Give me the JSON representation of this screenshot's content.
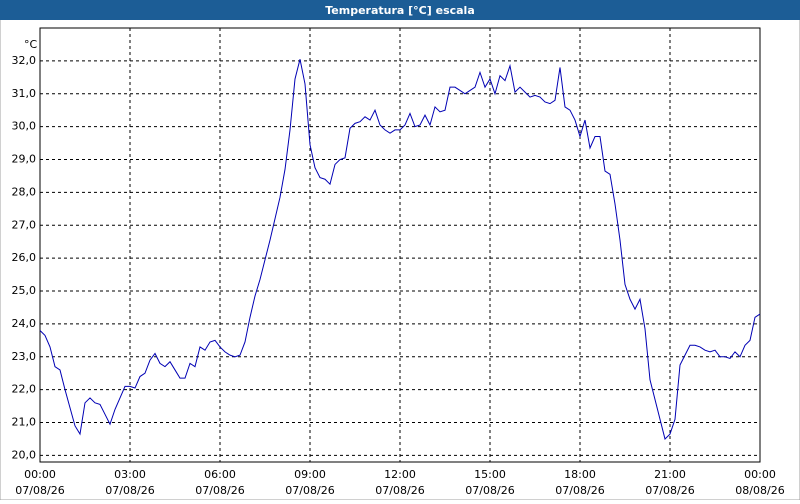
{
  "chart_data": {
    "type": "line",
    "title": "Temperatura [°C] escala",
    "y_unit": "°C",
    "x": [
      0,
      10,
      20,
      30,
      40,
      50,
      60,
      70,
      80,
      90,
      100,
      110,
      120,
      130,
      140,
      150,
      160,
      170,
      180,
      190,
      200,
      210,
      220,
      230,
      240,
      250,
      260,
      270,
      280,
      290,
      300,
      310,
      320,
      330,
      340,
      350,
      360,
      370,
      380,
      390,
      400,
      410,
      420,
      430,
      440,
      450,
      460,
      470,
      480,
      490,
      500,
      510,
      520,
      530,
      540,
      550,
      560,
      570,
      580,
      590,
      600,
      610,
      620,
      630,
      640,
      650,
      660,
      670,
      680,
      690,
      700,
      710,
      720,
      730,
      740,
      750,
      760,
      770,
      780,
      790,
      800,
      810,
      820,
      830,
      840,
      850,
      860,
      870,
      880,
      890,
      900,
      910,
      920,
      930,
      940,
      950,
      960,
      970,
      980,
      990,
      1000,
      1010,
      1020,
      1030,
      1040,
      1050,
      1060,
      1070,
      1080,
      1090,
      1100,
      1110,
      1120,
      1130,
      1140,
      1150,
      1160,
      1170,
      1180,
      1190,
      1200,
      1210,
      1220,
      1230,
      1240,
      1250,
      1260,
      1270,
      1280,
      1290,
      1300,
      1310,
      1320,
      1330,
      1340,
      1350,
      1360,
      1370,
      1380,
      1390,
      1400,
      1410,
      1420,
      1430,
      1440
    ],
    "series": [
      {
        "name": "Temperatura",
        "color": "#0000b4",
        "values": [
          23.8,
          23.65,
          23.3,
          22.7,
          22.6,
          22.0,
          21.45,
          20.9,
          20.65,
          21.6,
          21.75,
          21.6,
          21.55,
          21.25,
          20.95,
          21.4,
          21.75,
          22.1,
          22.1,
          22.05,
          22.4,
          22.5,
          22.9,
          23.1,
          22.8,
          22.7,
          22.85,
          22.6,
          22.35,
          22.35,
          22.8,
          22.7,
          23.3,
          23.2,
          23.45,
          23.5,
          23.3,
          23.15,
          23.05,
          23.0,
          23.05,
          23.45,
          24.2,
          24.85,
          25.35,
          25.95,
          26.55,
          27.2,
          27.85,
          28.7,
          29.9,
          31.45,
          32.05,
          31.3,
          29.45,
          28.75,
          28.45,
          28.4,
          28.25,
          28.85,
          29.0,
          29.05,
          29.95,
          30.1,
          30.15,
          30.3,
          30.2,
          30.5,
          30.05,
          29.9,
          29.8,
          29.9,
          29.9,
          30.05,
          30.4,
          30.0,
          30.05,
          30.35,
          30.05,
          30.6,
          30.45,
          30.5,
          31.2,
          31.2,
          31.1,
          31.0,
          31.1,
          31.2,
          31.65,
          31.2,
          31.45,
          31.0,
          31.55,
          31.4,
          31.85,
          31.05,
          31.2,
          31.05,
          30.9,
          30.95,
          30.9,
          30.75,
          30.7,
          30.8,
          31.8,
          30.6,
          30.5,
          30.2,
          29.7,
          30.2,
          29.35,
          29.7,
          29.7,
          28.65,
          28.55,
          27.65,
          26.55,
          25.2,
          24.75,
          24.45,
          24.75,
          23.85,
          22.3,
          21.7,
          21.1,
          20.5,
          20.65,
          21.1,
          22.75,
          23.05,
          23.35,
          23.35,
          23.3,
          23.2,
          23.15,
          23.2,
          23.0,
          23.0,
          22.95,
          23.15,
          23.0,
          23.35,
          23.5,
          24.2,
          24.3
        ]
      }
    ],
    "xlim": [
      0,
      1440
    ],
    "xticks": [
      {
        "value": 0,
        "label": "00:00"
      },
      {
        "value": 180,
        "label": "03:00"
      },
      {
        "value": 360,
        "label": "06:00"
      },
      {
        "value": 540,
        "label": "09:00"
      },
      {
        "value": 720,
        "label": "12:00"
      },
      {
        "value": 900,
        "label": "15:00"
      },
      {
        "value": 1080,
        "label": "18:00"
      },
      {
        "value": 1260,
        "label": "21:00"
      },
      {
        "value": 1440,
        "label": "00:00"
      }
    ],
    "xtick_dates": [
      "07/08/26",
      "07/08/26",
      "07/08/26",
      "07/08/26",
      "07/08/26",
      "07/08/26",
      "07/08/26",
      "07/08/26",
      "08/08/26"
    ],
    "ylim": [
      19.8,
      33.0
    ],
    "yticks": [
      {
        "value": 20,
        "label": "20,0"
      },
      {
        "value": 21,
        "label": "21,0"
      },
      {
        "value": 22,
        "label": "22,0"
      },
      {
        "value": 23,
        "label": "23,0"
      },
      {
        "value": 24,
        "label": "24,0"
      },
      {
        "value": 25,
        "label": "25,0"
      },
      {
        "value": 26,
        "label": "26,0"
      },
      {
        "value": 27,
        "label": "27,0"
      },
      {
        "value": 28,
        "label": "28,0"
      },
      {
        "value": 29,
        "label": "29,0"
      },
      {
        "value": 30,
        "label": "30,0"
      },
      {
        "value": 31,
        "label": "31,0"
      },
      {
        "value": 32,
        "label": "32,0"
      }
    ],
    "grid": true
  }
}
